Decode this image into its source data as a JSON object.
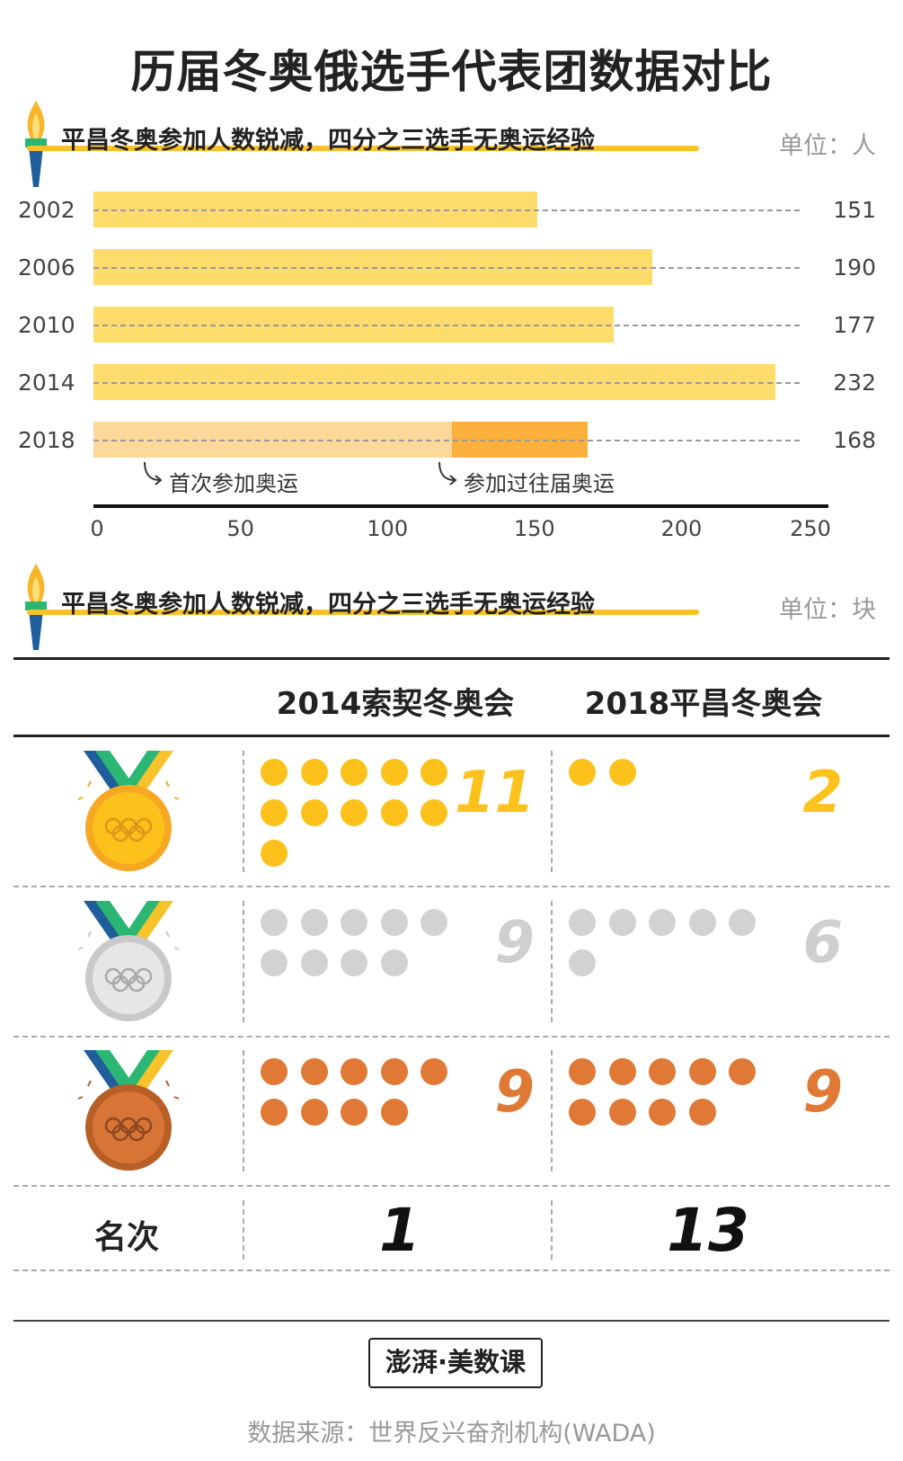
{
  "title": "历届冬奥俄选手代表团数据对比",
  "section1": {
    "subtitle": "平昌冬奥参加人数锐减，四分之三选手无奥运经验",
    "unit": "单位：人"
  },
  "section2": {
    "subtitle": "平昌冬奥参加人数锐减，四分之三选手无奥运经验",
    "unit": "单位：块"
  },
  "colors": {
    "bar": "#fddc6c",
    "bar_light": "#fdd89b",
    "bar_dark": "#fbb03b",
    "gold": "#fcc21b",
    "silver": "#d2d2d2",
    "bronze": "#e07935",
    "underline": "#f7c22a"
  },
  "chart_data": [
    {
      "type": "bar",
      "orientation": "horizontal",
      "categories": [
        "2002",
        "2006",
        "2010",
        "2014",
        "2018"
      ],
      "values": [
        151,
        190,
        177,
        232,
        168
      ],
      "value_labels": [
        "151",
        "190",
        "177",
        "232",
        "168"
      ],
      "xlim": [
        0,
        250
      ],
      "xticks": [
        "0",
        "50",
        "100",
        "150",
        "200",
        "250"
      ],
      "split_2018": {
        "first_time": 122,
        "returning": 46
      },
      "annotations": [
        "首次参加奥运",
        "参加过往届奥运"
      ],
      "unit": "单位：人"
    },
    {
      "type": "table",
      "columns": [
        "2014索契冬奥会",
        "2018平昌冬奥会"
      ],
      "rows": [
        {
          "medal": "gold",
          "values": [
            11,
            2
          ],
          "labels": [
            "11",
            "2"
          ]
        },
        {
          "medal": "silver",
          "values": [
            9,
            6
          ],
          "labels": [
            "9",
            "6"
          ]
        },
        {
          "medal": "bronze",
          "values": [
            9,
            9
          ],
          "labels": [
            "9",
            "9"
          ]
        }
      ],
      "rank_label": "名次",
      "ranks": [
        "1",
        "13"
      ],
      "unit": "单位：块"
    }
  ],
  "footer": {
    "brand": "澎湃·美数课",
    "source": "数据来源：世界反兴奋剂机构(WADA)"
  }
}
